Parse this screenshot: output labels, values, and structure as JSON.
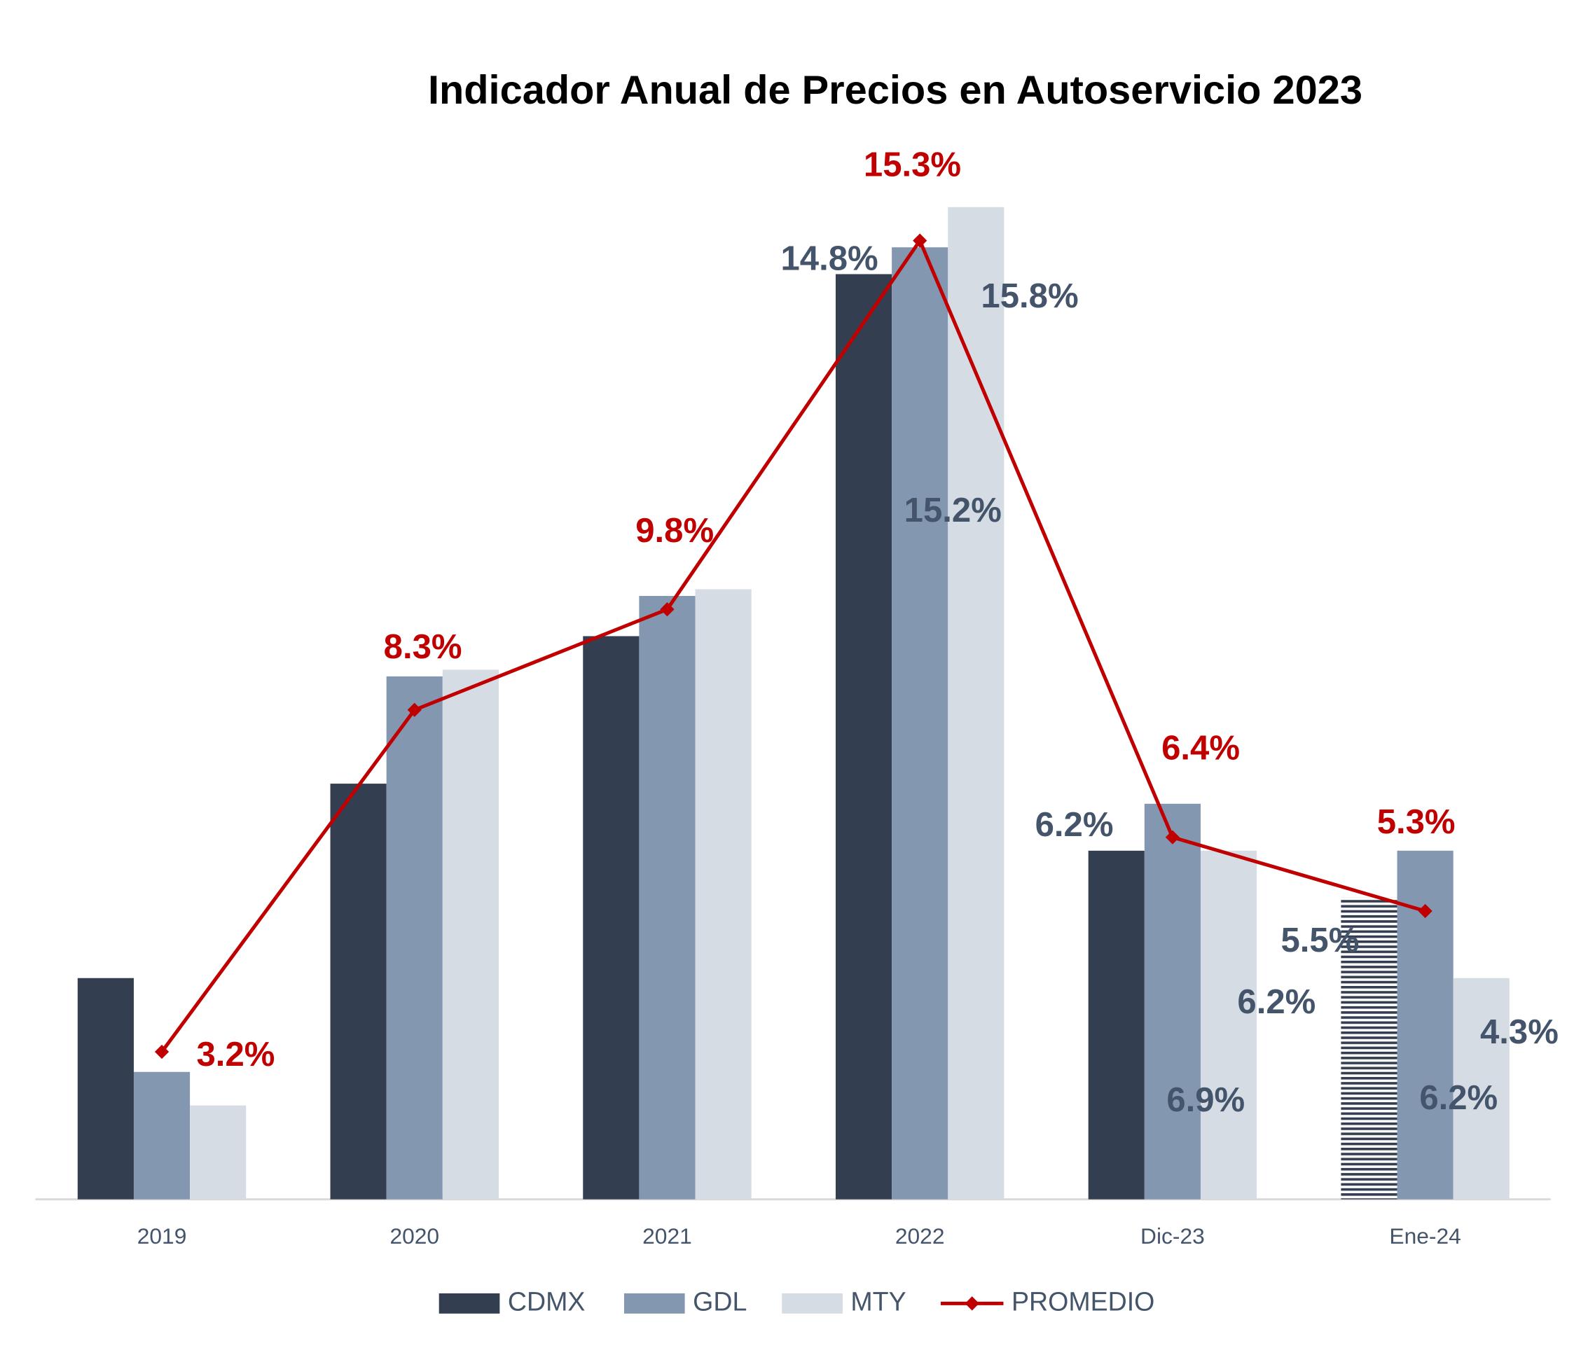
{
  "chart_data": {
    "type": "bar",
    "title": "Indicador Anual de Precios en Autoservicio 2023",
    "categories": [
      "2019",
      "2020",
      "2021",
      "2022",
      "Dic-23",
      "Ene-24"
    ],
    "ylim": [
      1,
      18
    ],
    "legend": "bottom",
    "series": [
      {
        "name": "CDMX",
        "type": "bar",
        "color": "#333f50",
        "values": [
          4.3,
          7.2,
          9.4,
          14.8,
          6.2,
          5.5
        ],
        "value_labels": [
          null,
          null,
          null,
          "14.8%",
          "6.2%",
          "5.5%"
        ],
        "patterns": [
          null,
          null,
          null,
          null,
          null,
          "hatched"
        ]
      },
      {
        "name": "GDL",
        "type": "bar",
        "color": "#8497b0",
        "values": [
          2.9,
          8.8,
          10.0,
          15.2,
          6.9,
          6.2
        ],
        "value_labels": [
          null,
          null,
          null,
          "15.2%",
          "6.9%",
          "6.2%"
        ]
      },
      {
        "name": "MTY",
        "type": "bar",
        "color": "#d6dce4",
        "values": [
          2.4,
          8.9,
          10.1,
          15.8,
          6.2,
          4.3
        ],
        "value_labels": [
          null,
          null,
          null,
          "15.8%",
          "6.2%",
          "4.3%"
        ]
      },
      {
        "name": "PROMEDIO",
        "type": "line",
        "color": "#c00000",
        "values": [
          3.2,
          8.3,
          9.8,
          15.3,
          6.4,
          5.3
        ],
        "value_labels": [
          "3.2%",
          "8.3%",
          "9.8%",
          "15.3%",
          "6.4%",
          "5.3%"
        ]
      }
    ]
  }
}
